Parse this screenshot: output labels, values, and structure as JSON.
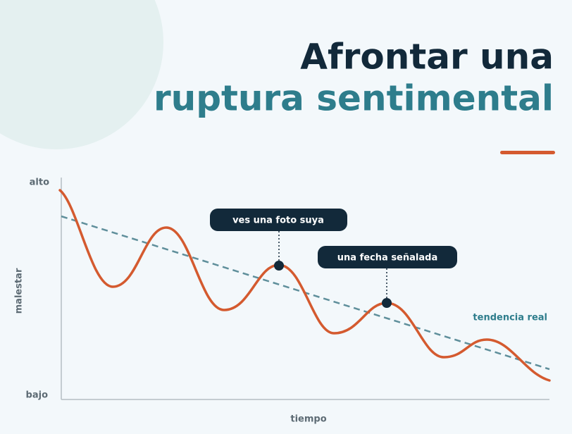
{
  "title": {
    "line1": "Afrontar una",
    "line2": "ruptura sentimental"
  },
  "axes": {
    "y_title": "malestar",
    "y_high": "alto",
    "y_low": "bajo",
    "x_title": "tiempo"
  },
  "callouts": [
    "ves una foto suya",
    "una fecha señalada"
  ],
  "trend_label": "tendencia real"
}
